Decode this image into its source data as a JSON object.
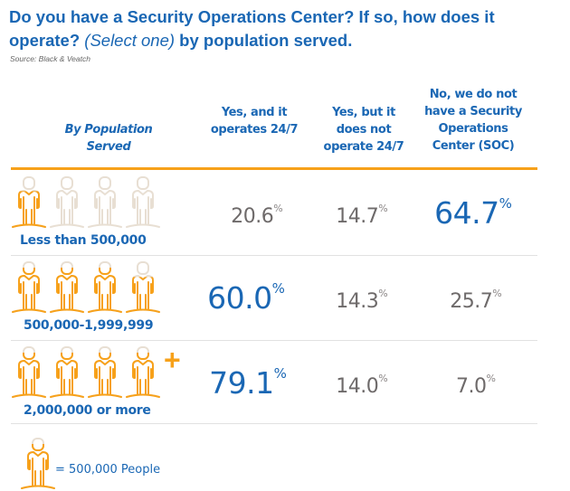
{
  "title": {
    "part1": "Do you have a Security Operations Center? If so, how does it operate?",
    "part2_italic": "(Select one)",
    "part3": "by population served."
  },
  "source": "Source: Black & Veatch",
  "colors": {
    "blue": "#1a67b4",
    "orange": "#f7a11a",
    "beige": "#e8dfd3",
    "gray_text": "#6e6a6a"
  },
  "headers": {
    "row_header": "By Population Served",
    "columns": [
      "Yes, and it operates 24/7",
      "Yes, but it does not operate 24/7",
      "No, we do not have a Security Operations Center (SOC)"
    ]
  },
  "chart_data": {
    "type": "table",
    "title": "Do you have a Security Operations Center? If so, how does it operate? (Select one) by population served.",
    "categories": [
      "Less than 500,000",
      "500,000-1,999,999",
      "2,000,000 or more"
    ],
    "columns": [
      "Yes, and it operates 24/7",
      "Yes, but it does not operate 24/7",
      "No, we do not have a Security Operations Center (SOC)"
    ],
    "series": [
      {
        "name": "Less than 500,000",
        "values": [
          20.6,
          14.7,
          64.7
        ],
        "highlight_index": 2,
        "people_filled": 0.82,
        "plus": false
      },
      {
        "name": "500,000-1,999,999",
        "values": [
          60.0,
          14.3,
          25.7
        ],
        "highlight_index": 0,
        "people_filled": 3.8,
        "plus": false
      },
      {
        "name": "2,000,000 or more",
        "values": [
          79.1,
          14.0,
          7.0
        ],
        "highlight_index": 0,
        "people_filled": 4,
        "plus": true
      }
    ],
    "unit": "%",
    "icon_total": 4,
    "legend": "= 500,000 People"
  },
  "rows": [
    {
      "label": "Less than 500,000",
      "values": [
        "20.6",
        "14.7",
        "64.7"
      ]
    },
    {
      "label": "500,000-1,999,999",
      "values": [
        "60.0",
        "14.3",
        "25.7"
      ]
    },
    {
      "label": "2,000,000 or more",
      "values": [
        "79.1",
        "14.0",
        "7.0"
      ]
    }
  ],
  "pct_symbol": "%",
  "plus_symbol": "+",
  "legend": {
    "text": "= 500,000 People",
    "icon": "person-icon"
  }
}
